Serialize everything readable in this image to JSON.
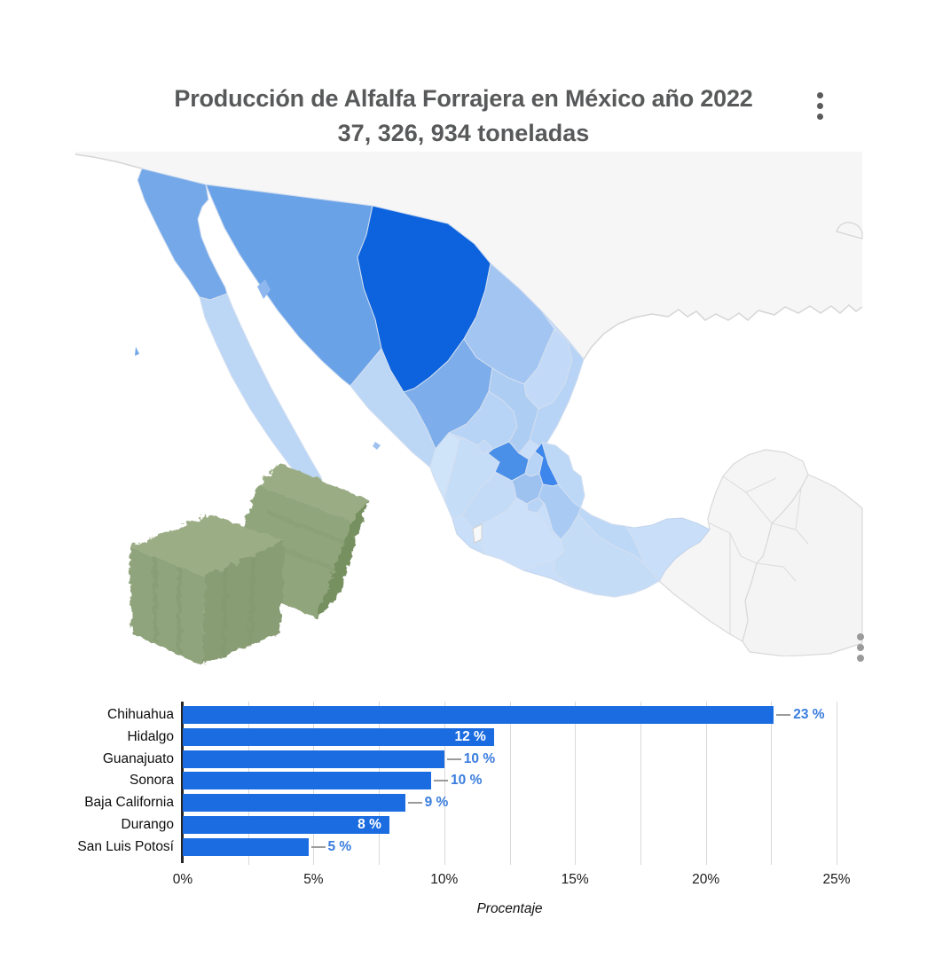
{
  "title": {
    "line1": "Producción de Alfalfa Forrajera en México año 2022",
    "line2": "37, 326, 934 toneladas"
  },
  "icons": {
    "title_menu": "vertical-ellipsis-icon",
    "map_menu": "vertical-ellipsis-icon",
    "bales_image": "alfalfa-hay-bales-photo"
  },
  "chart_data": [
    {
      "type": "choropleth",
      "title": "Mexico states shaded by alfalfa forage production share (darker blue = higher share)",
      "regions_no_data": [
        "Yucatán Península",
        "Chiapas",
        "Tabasco",
        "Colima",
        "USA",
        "Guatemala/Belize"
      ],
      "colors": {
        "ocean": "#ffffff",
        "usa_fill": "#f6f6f7",
        "coast_stroke": "#d6d6d6",
        "state_stroke": "#d3dff0",
        "base_fill": "#c9def8",
        "se_region_fill": "#f5f5f6",
        "se_region_stroke": "#d9d9d9",
        "guatemala_fill": "#f4f4f5",
        "florida_fill": "#f6f6f7",
        "chihuahua": "#0d63dd",
        "hidalgo": "#3c86ec",
        "guanajuato": "#4a8fe8",
        "sonora": "#6aa2e8",
        "baja_california": "#74a8e9",
        "durango": "#7dadea",
        "mexico_state": "#9ec2f0",
        "coahuila": "#a3c5f2",
        "puebla": "#a9cbf3",
        "san_luis_potosi": "#aecdf3",
        "zacatecas": "#b7d3f5",
        "queretaro": "#b7d3f5",
        "tamaulipas": "#b7d3f5",
        "morelos": "#b7d3f5",
        "sinaloa": "#bcd6f5",
        "baja_california_sur": "#bcd6f5",
        "veracruz": "#bdd7f6",
        "nuevo_leon": "#c2daf7",
        "aguascalientes": "#c2daf7",
        "michoacan": "#c3dbf7",
        "oaxaca": "#c5dcf7",
        "jalisco": "#c6ddf8",
        "guerrero": "#cce1f9",
        "nayarit": "#cfe3f9",
        "tlaxcala": "#cfe3f9",
        "colima": "#f8f9fa",
        "island": "#8db7ee"
      }
    },
    {
      "type": "bar",
      "orientation": "horizontal",
      "categories": [
        "Chihuahua",
        "Hidalgo",
        "Guanajuato",
        "Sonora",
        "Baja California",
        "Durango",
        "San Luis Potosí"
      ],
      "values": [
        22.6,
        11.9,
        10.0,
        9.5,
        8.5,
        7.9,
        4.8
      ],
      "value_labels": [
        "23 %",
        "12 %",
        "10 %",
        "10 %",
        "9 %",
        "8 %",
        "5 %"
      ],
      "label_placement": [
        "outside",
        "inside",
        "outside",
        "outside",
        "outside",
        "inside",
        "outside"
      ],
      "x_ticks": [
        "0%",
        "5%",
        "10%",
        "15%",
        "20%",
        "25%"
      ],
      "x_max": 25,
      "x_gridline_step": 2.5,
      "xlabel": "Procentaje",
      "grid": true,
      "bar_color": "#1b6ce1",
      "outside_label_color": "#3a7ddd",
      "inside_label_color": "#ffffff",
      "leader_color": "#9b9b9b",
      "axis_color": "#262626"
    }
  ]
}
